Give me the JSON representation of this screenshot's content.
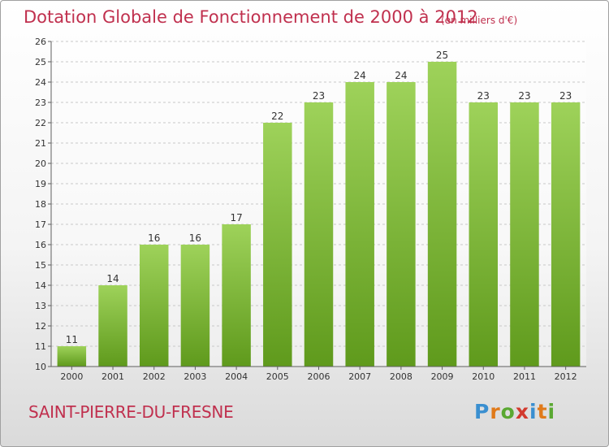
{
  "header": {
    "title": "Dotation Globale de Fonctionnement de 2000 à 2012",
    "unit": "(en milliers d'€)"
  },
  "footer": {
    "commune": "SAINT-PIERRE-DU-FRESNE",
    "logo_letters": [
      "P",
      "r",
      "o",
      "x",
      "i",
      "t",
      "i"
    ],
    "logo_colors": [
      "#3a8fd0",
      "#e07a1a",
      "#5aa832",
      "#d23a2e",
      "#3a8fd0",
      "#e07a1a",
      "#5aa832"
    ]
  },
  "colors": {
    "title": "#c0304e",
    "bar_top": "#9ed25a",
    "bar_bottom": "#5f9a1c",
    "grid": "#c8c8c8",
    "axis": "#606060",
    "label": "#333333"
  },
  "chart_data": {
    "type": "bar",
    "title": "Dotation Globale de Fonctionnement de 2000 à 2012",
    "subtitle": "(en milliers d'€)",
    "xlabel": "",
    "ylabel": "",
    "categories": [
      "2000",
      "2001",
      "2002",
      "2003",
      "2004",
      "2005",
      "2006",
      "2007",
      "2008",
      "2009",
      "2010",
      "2011",
      "2012"
    ],
    "values": [
      11,
      14,
      16,
      16,
      17,
      22,
      23,
      24,
      24,
      25,
      23,
      23,
      23
    ],
    "ylim": [
      10,
      26
    ],
    "yticks": [
      10,
      11,
      12,
      13,
      14,
      15,
      16,
      17,
      18,
      19,
      20,
      21,
      22,
      23,
      24,
      25,
      26
    ],
    "grid": "horizontal-dashed",
    "legend": "none"
  }
}
